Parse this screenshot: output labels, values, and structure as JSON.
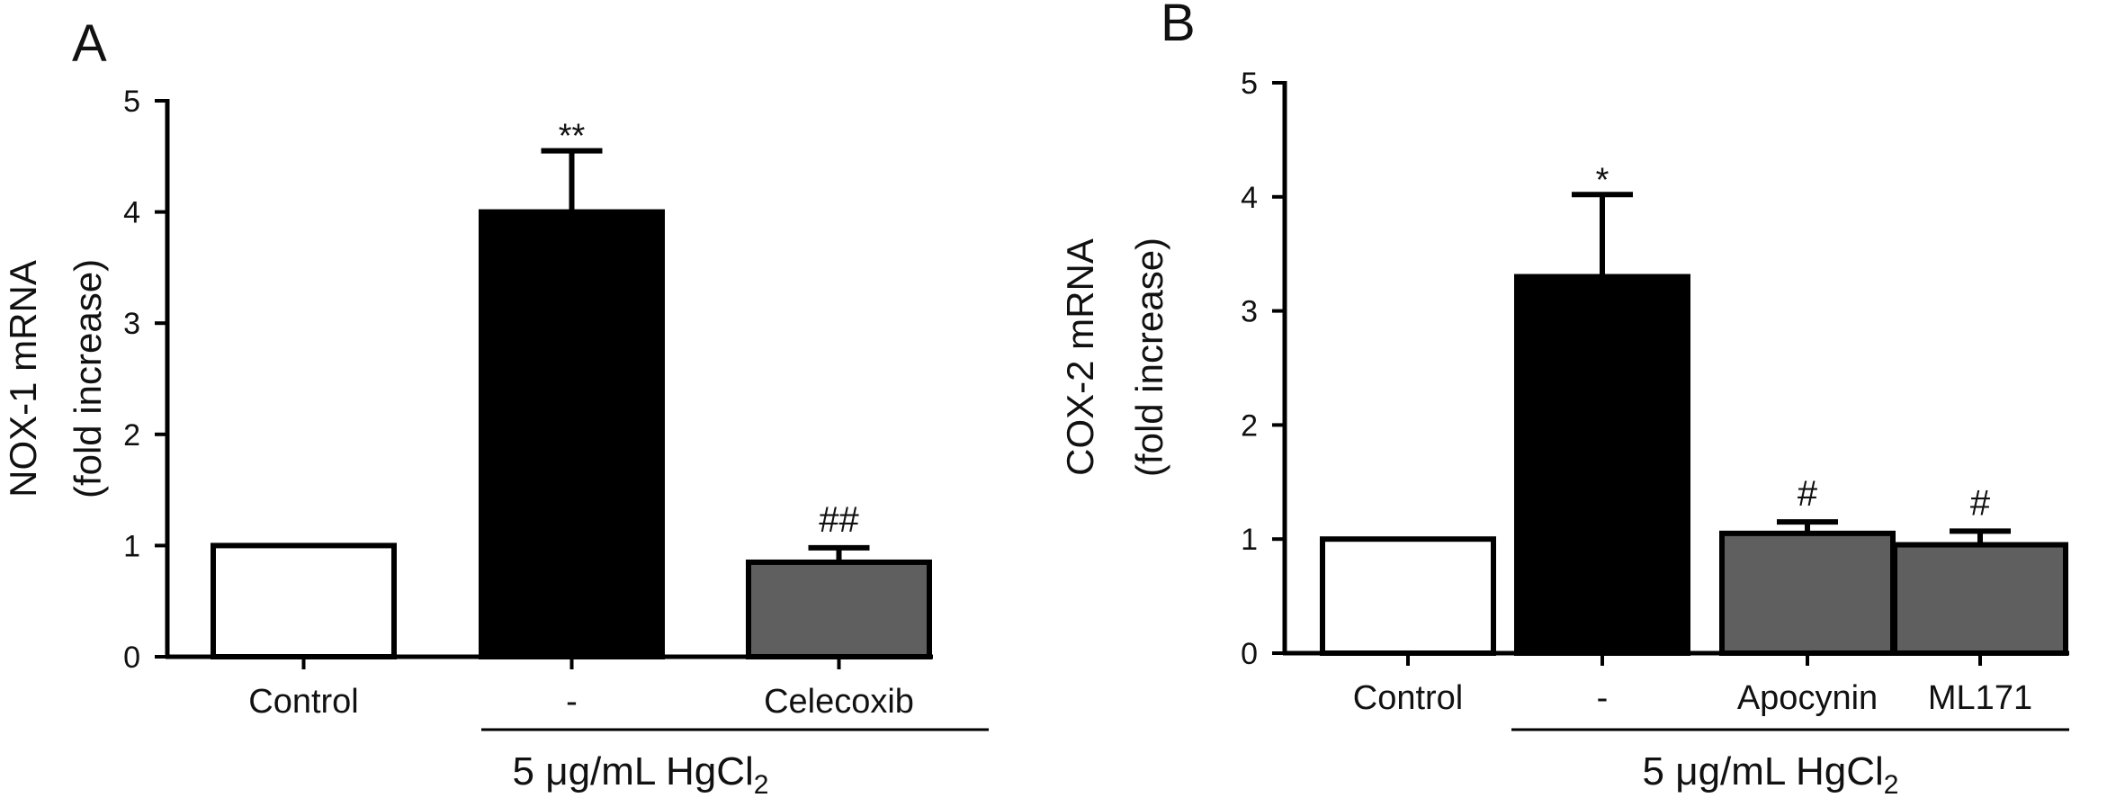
{
  "chart_data": [
    {
      "panel": "A",
      "type": "bar",
      "categories": [
        "Control",
        "-",
        "Celecoxib"
      ],
      "values": [
        1.0,
        4.0,
        0.85
      ],
      "error": [
        0,
        0.55,
        0.13
      ],
      "significance": [
        "",
        "**",
        "##"
      ],
      "fills": [
        "#ffffff",
        "#000000",
        "#5f5f5f"
      ],
      "ylabel_line1": "NOX-1 mRNA",
      "ylabel_line2": "(fold increase)",
      "ylim": [
        0,
        5
      ],
      "yticks": [
        0,
        1,
        2,
        3,
        4,
        5
      ],
      "group_label": "5 μg/mL HgCl",
      "group_label_subscript": "2"
    },
    {
      "panel": "B",
      "type": "bar",
      "categories": [
        "Control",
        "-",
        "Apocynin",
        "ML171"
      ],
      "values": [
        1.0,
        3.3,
        1.05,
        0.95
      ],
      "error": [
        0,
        0.72,
        0.1,
        0.12
      ],
      "significance": [
        "",
        "*",
        "#",
        "#"
      ],
      "fills": [
        "#ffffff",
        "#000000",
        "#5f5f5f",
        "#5f5f5f"
      ],
      "ylabel_line1": "COX-2 mRNA",
      "ylabel_line2": "(fold increase)",
      "ylim": [
        0,
        5
      ],
      "yticks": [
        0,
        1,
        2,
        3,
        4,
        5
      ],
      "group_label": "5 μg/mL HgCl",
      "group_label_subscript": "2"
    }
  ]
}
